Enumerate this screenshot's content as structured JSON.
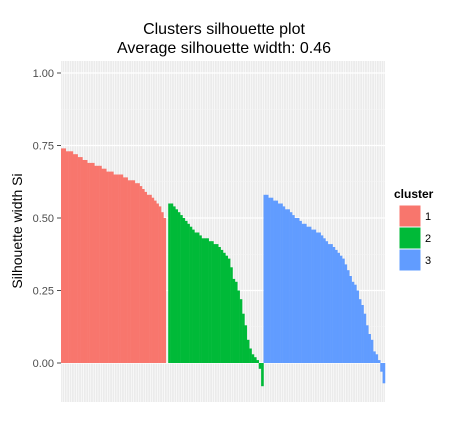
{
  "chart_data": {
    "type": "bar",
    "title": "Clusters silhouette plot",
    "subtitle": "Average silhouette width: 0.46",
    "xlabel": "",
    "ylabel": "Silhouette width Si",
    "ylim": [
      -0.1,
      1.0
    ],
    "yticks": [
      "0.00",
      "0.25",
      "0.50",
      "0.75",
      "1.00"
    ],
    "ytick_values": [
      0,
      0.25,
      0.5,
      0.75,
      1.0
    ],
    "grid": true,
    "legend": {
      "title": "cluster",
      "position": "right"
    },
    "series": [
      {
        "name": "1",
        "color": "#F8766D",
        "values": [
          0.74,
          0.74,
          0.73,
          0.73,
          0.73,
          0.72,
          0.72,
          0.71,
          0.71,
          0.7,
          0.7,
          0.69,
          0.69,
          0.69,
          0.68,
          0.68,
          0.68,
          0.67,
          0.67,
          0.66,
          0.66,
          0.66,
          0.65,
          0.65,
          0.65,
          0.65,
          0.64,
          0.64,
          0.63,
          0.63,
          0.63,
          0.62,
          0.62,
          0.61,
          0.6,
          0.59,
          0.58,
          0.58,
          0.57,
          0.56,
          0.55,
          0.54,
          0.52,
          0.5,
          0.0
        ]
      },
      {
        "name": "2",
        "color": "#00BA38",
        "values": [
          0.55,
          0.55,
          0.54,
          0.53,
          0.52,
          0.51,
          0.5,
          0.49,
          0.48,
          0.47,
          0.46,
          0.45,
          0.45,
          0.44,
          0.43,
          0.43,
          0.43,
          0.42,
          0.42,
          0.41,
          0.41,
          0.4,
          0.39,
          0.38,
          0.37,
          0.36,
          0.33,
          0.29,
          0.28,
          0.25,
          0.22,
          0.17,
          0.13,
          0.08,
          0.05,
          0.03,
          0.02,
          0.01,
          -0.02,
          -0.08
        ]
      },
      {
        "name": "3",
        "color": "#619CFF",
        "values": [
          0.58,
          0.58,
          0.57,
          0.57,
          0.56,
          0.56,
          0.55,
          0.55,
          0.54,
          0.53,
          0.53,
          0.52,
          0.51,
          0.5,
          0.5,
          0.49,
          0.48,
          0.48,
          0.47,
          0.47,
          0.46,
          0.46,
          0.45,
          0.45,
          0.44,
          0.43,
          0.42,
          0.41,
          0.41,
          0.4,
          0.39,
          0.38,
          0.37,
          0.36,
          0.34,
          0.32,
          0.3,
          0.28,
          0.27,
          0.25,
          0.22,
          0.2,
          0.17,
          0.13,
          0.1,
          0.08,
          0.04,
          0.03,
          0.01,
          -0.03,
          -0.07
        ]
      }
    ]
  }
}
